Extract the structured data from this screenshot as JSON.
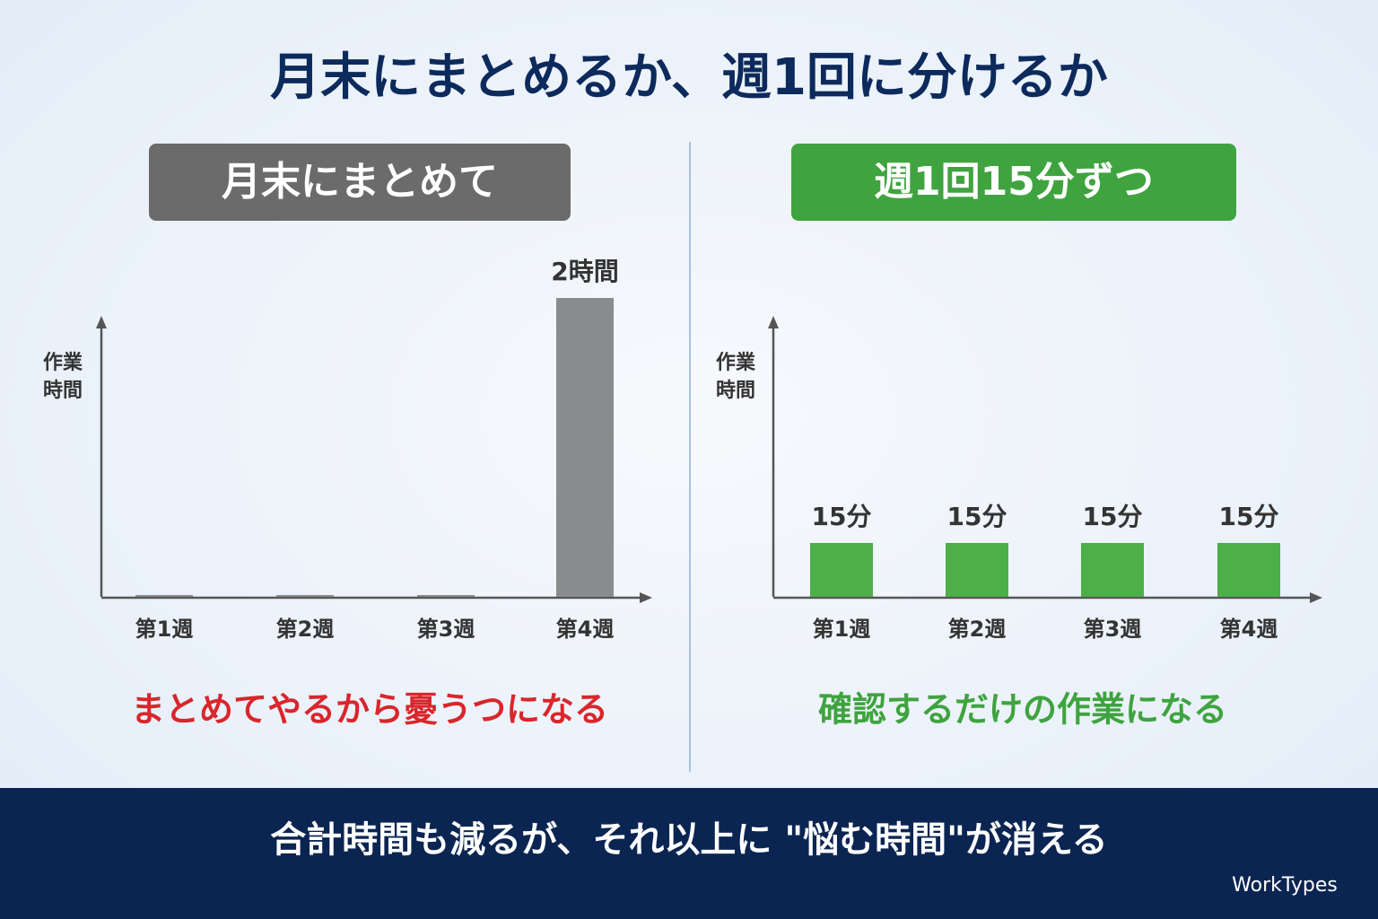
{
  "title": "月末にまとめるか、週1回に分けるか",
  "footer": "合計時間も減るが、それ以上に \"悩む時間\"が消える",
  "brand": "WorkTypes",
  "chart_data": [
    {
      "type": "bar",
      "title": "月末にまとめて",
      "title_color": "#6b6b6b",
      "ylabel": [
        "作業",
        "時間"
      ],
      "categories": [
        "第1週",
        "第2週",
        "第3週",
        "第4週"
      ],
      "values": [
        0,
        0,
        0,
        2
      ],
      "value_labels": [
        null,
        null,
        null,
        "2時間"
      ],
      "color": "#8a8b8d",
      "ylim": [
        0,
        2
      ],
      "caption": "まとめてやるから憂うつになる",
      "caption_color": "#d9262b"
    },
    {
      "type": "bar",
      "title": "週1回15分ずつ",
      "title_color": "#3fa33f",
      "ylabel": [
        "作業",
        "時間"
      ],
      "categories": [
        "第1週",
        "第2週",
        "第3週",
        "第4週"
      ],
      "values": [
        15,
        15,
        15,
        15
      ],
      "value_labels": [
        "15分",
        "15分",
        "15分",
        "15分"
      ],
      "color": "#4caf48",
      "ylim": [
        0,
        15
      ],
      "caption": "確認するだけの作業になる",
      "caption_color": "#3fa33f"
    }
  ]
}
